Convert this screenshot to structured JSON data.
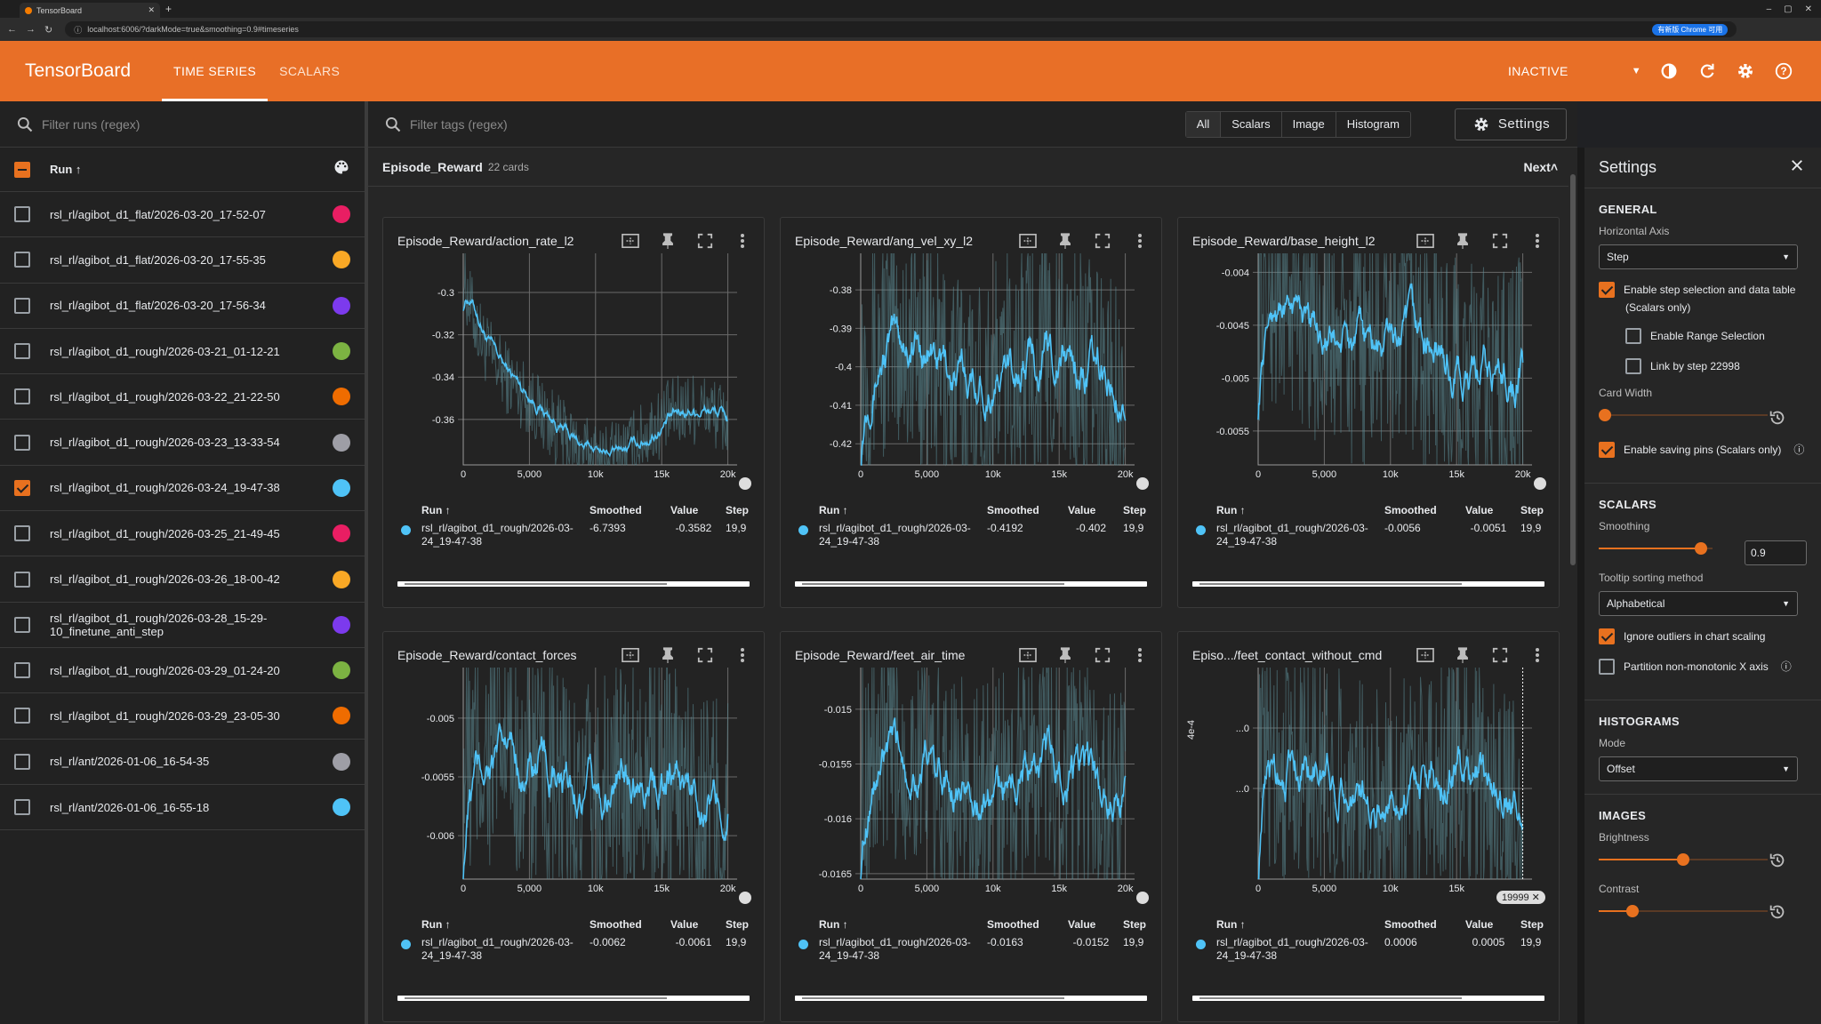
{
  "browser": {
    "tab_title": "TensorBoard",
    "url": "localhost:6006/?darkMode=true&smoothing=0.9#timeseries",
    "profile": "有新版 Chrome 可用"
  },
  "header": {
    "brand": "TensorBoard",
    "tabs": [
      "TIME SERIES",
      "SCALARS"
    ],
    "status": "INACTIVE",
    "accent": "#e86f27"
  },
  "runs": {
    "filter_placeholder": "Filter runs (regex)",
    "column_label": "Run ↑",
    "items": [
      {
        "name": "rsl_rl/agibot_d1_flat/2026-03-20_17-52-07",
        "color": "#e91e63",
        "checked": false
      },
      {
        "name": "rsl_rl/agibot_d1_flat/2026-03-20_17-55-35",
        "color": "#f9a825",
        "checked": false
      },
      {
        "name": "rsl_rl/agibot_d1_flat/2026-03-20_17-56-34",
        "color": "#7c3aed",
        "checked": false
      },
      {
        "name": "rsl_rl/agibot_d1_rough/2026-03-21_01-12-21",
        "color": "#7cb342",
        "checked": false
      },
      {
        "name": "rsl_rl/agibot_d1_rough/2026-03-22_21-22-50",
        "color": "#ef6c00",
        "checked": false
      },
      {
        "name": "rsl_rl/agibot_d1_rough/2026-03-23_13-33-54",
        "color": "#9e9ea6",
        "checked": false
      },
      {
        "name": "rsl_rl/agibot_d1_rough/2026-03-24_19-47-38",
        "color": "#4fc3f7",
        "checked": true
      },
      {
        "name": "rsl_rl/agibot_d1_rough/2026-03-25_21-49-45",
        "color": "#e91e63",
        "checked": false
      },
      {
        "name": "rsl_rl/agibot_d1_rough/2026-03-26_18-00-42",
        "color": "#f9a825",
        "checked": false
      },
      {
        "name": "rsl_rl/agibot_d1_rough/2026-03-28_15-29-10_finetune_anti_step",
        "color": "#7c3aed",
        "checked": false
      },
      {
        "name": "rsl_rl/agibot_d1_rough/2026-03-29_01-24-20",
        "color": "#7cb342",
        "checked": false
      },
      {
        "name": "rsl_rl/agibot_d1_rough/2026-03-29_23-05-30",
        "color": "#ef6c00",
        "checked": false
      },
      {
        "name": "rsl_rl/ant/2026-01-06_16-54-35",
        "color": "#9e9ea6",
        "checked": false
      },
      {
        "name": "rsl_rl/ant/2026-01-06_16-55-18",
        "color": "#4fc3f7",
        "checked": false
      }
    ]
  },
  "main": {
    "tag_filter_placeholder": "Filter tags (regex)",
    "type_toggles": [
      "All",
      "Scalars",
      "Image",
      "Histogram"
    ],
    "settings_label": "Settings",
    "group_name": "Episode_Reward",
    "group_count": "22 cards",
    "next_label": "Next",
    "table_headers": {
      "run": "Run ↑",
      "smoothed": "Smoothed",
      "value": "Value",
      "step": "Step"
    },
    "step_badge": "19999"
  },
  "chart_data": [
    {
      "type": "line",
      "title": "Episode_Reward/action_rate_l2",
      "xticks": [
        "0",
        "5,000",
        "10k",
        "15k",
        "20k"
      ],
      "yticks": [
        "-0.3",
        "-0.32",
        "-0.34",
        "-0.36"
      ],
      "ylim": [
        -0.3815,
        -0.2815
      ],
      "xlim": [
        0,
        20700
      ],
      "profile": "decay",
      "series": [
        {
          "name": "rsl_rl/agibot_d1_rough/2026-03-24_19-47-38",
          "color": "#4fc3f7"
        }
      ],
      "row": {
        "run": "rsl_rl/agibot_d1_rough/2026-03-24_19-47-38",
        "smoothed": "-6.7393",
        "value": "-0.3582",
        "step": "19,9"
      }
    },
    {
      "type": "line",
      "title": "Episode_Reward/ang_vel_xy_l2",
      "xticks": [
        "0",
        "5,000",
        "10k",
        "15k",
        "20k"
      ],
      "yticks": [
        "-0.38",
        "-0.39",
        "-0.4",
        "-0.41",
        "-0.42"
      ],
      "ylim": [
        -0.4255,
        -0.3705
      ],
      "xlim": [
        0,
        20700
      ],
      "profile": "noisy",
      "series": [
        {
          "name": "rsl_rl/agibot_d1_rough/2026-03-24_19-47-38",
          "color": "#4fc3f7"
        }
      ],
      "row": {
        "run": "rsl_rl/agibot_d1_rough/2026-03-24_19-47-38",
        "smoothed": "-0.4192",
        "value": "-0.402",
        "step": "19,9"
      }
    },
    {
      "type": "line",
      "title": "Episode_Reward/base_height_l2",
      "xticks": [
        "0",
        "5,000",
        "10k",
        "15k",
        "20k"
      ],
      "yticks": [
        "-0.004",
        "-0.0045",
        "-0.005",
        "-0.0055"
      ],
      "ylim": [
        -0.00582,
        -0.00382
      ],
      "xlim": [
        0,
        20700
      ],
      "profile": "decline",
      "series": [
        {
          "name": "rsl_rl/agibot_d1_rough/2026-03-24_19-47-38",
          "color": "#4fc3f7"
        }
      ],
      "row": {
        "run": "rsl_rl/agibot_d1_rough/2026-03-24_19-47-38",
        "smoothed": "-0.0056",
        "value": "-0.0051",
        "step": "19,9"
      }
    },
    {
      "type": "line",
      "title": "Episode_Reward/contact_forces",
      "xticks": [
        "0",
        "5,000",
        "10k",
        "15k",
        "20k"
      ],
      "yticks": [
        "-0.005",
        "-0.0055",
        "-0.006"
      ],
      "ylim": [
        -0.00637,
        -0.00457
      ],
      "xlim": [
        0,
        20700
      ],
      "profile": "noisy",
      "series": [
        {
          "name": "rsl_rl/agibot_d1_rough/2026-03-24_19-47-38",
          "color": "#4fc3f7"
        }
      ],
      "row": {
        "run": "rsl_rl/agibot_d1_rough/2026-03-24_19-47-38",
        "smoothed": "-0.0062",
        "value": "-0.0061",
        "step": "19,9"
      }
    },
    {
      "type": "line",
      "title": "Episode_Reward/feet_air_time",
      "xticks": [
        "0",
        "5,000",
        "10k",
        "15k",
        "20k"
      ],
      "yticks": [
        "-0.015",
        "-0.0155",
        "-0.016",
        "-0.0165"
      ],
      "ylim": [
        -0.01655,
        -0.01462
      ],
      "xlim": [
        0,
        20700
      ],
      "profile": "noisy",
      "series": [
        {
          "name": "rsl_rl/agibot_d1_rough/2026-03-24_19-47-38",
          "color": "#4fc3f7"
        }
      ],
      "row": {
        "run": "rsl_rl/agibot_d1_rough/2026-03-24_19-47-38",
        "smoothed": "-0.0163",
        "value": "-0.0152",
        "step": "19,9"
      }
    },
    {
      "type": "line",
      "title": "Episo.../feet_contact_without_cmd",
      "xticks": [
        "0",
        "5,000",
        "10k",
        "15k"
      ],
      "yticks": [
        "...0",
        "...0"
      ],
      "ylabel": "4e-4",
      "ylim": [
        -0.3,
        1.4
      ],
      "xlim": [
        0,
        20700
      ],
      "profile": "noisy",
      "series": [
        {
          "name": "rsl_rl/agibot_d1_rough/2026-03-24_19-47-38",
          "color": "#4fc3f7"
        }
      ],
      "row": {
        "run": "rsl_rl/agibot_d1_rough/2026-03-24_19-47-38",
        "smoothed": "0.0006",
        "value": "0.0005",
        "step": "19,9"
      }
    }
  ],
  "settings": {
    "title": "Settings",
    "general": {
      "heading": "GENERAL",
      "horizontal_axis_label": "Horizontal Axis",
      "horizontal_axis_value": "Step",
      "step_selection": "Enable step selection and data table",
      "step_selection_sub": "(Scalars only)",
      "range_selection": "Enable Range Selection",
      "link_by_step": "Link by step 22998",
      "card_width_label": "Card Width",
      "card_width_level": 0,
      "saving_pins": "Enable saving pins (Scalars only)"
    },
    "scalars": {
      "heading": "SCALARS",
      "smoothing_label": "Smoothing",
      "smoothing_value": "0.9",
      "tooltip_label": "Tooltip sorting method",
      "tooltip_value": "Alphabetical",
      "ignore_outliers": "Ignore outliers in chart scaling",
      "partition": "Partition non-monotonic X axis"
    },
    "histograms": {
      "heading": "HISTOGRAMS",
      "mode_label": "Mode",
      "mode_value": "Offset"
    },
    "images": {
      "heading": "IMAGES",
      "brightness_label": "Brightness",
      "brightness_level": 0.5,
      "contrast_label": "Contrast",
      "contrast_level": 0.2
    }
  }
}
